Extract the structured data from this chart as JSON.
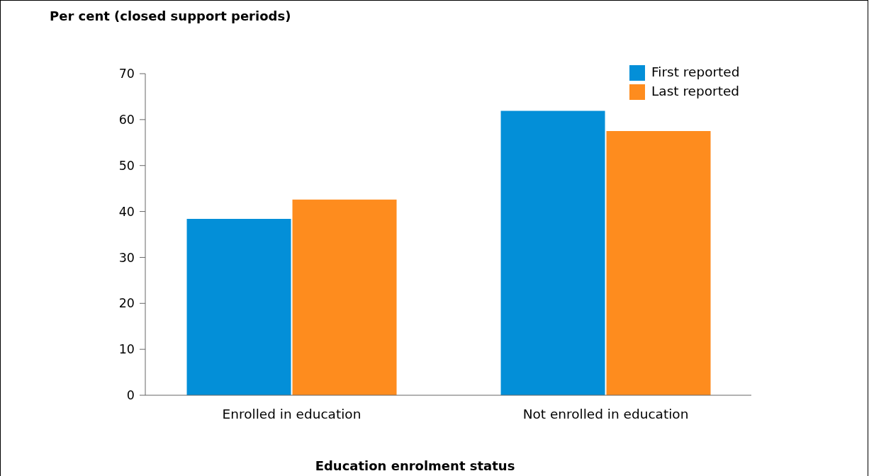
{
  "chart_data": {
    "type": "bar",
    "ylabel": "Per cent (closed support periods)",
    "xlabel": "Education enrolment status",
    "categories": [
      "Enrolled in education",
      "Not enrolled in education"
    ],
    "series": [
      {
        "name": "First reported",
        "color": "#038fd8",
        "values": [
          38.4,
          61.9
        ]
      },
      {
        "name": "Last reported",
        "color": "#fe8c1e",
        "values": [
          42.6,
          57.5
        ]
      }
    ],
    "ylim": [
      0,
      70
    ],
    "yticks": [
      0,
      10,
      20,
      30,
      40,
      50,
      60,
      70
    ],
    "legend": "top right"
  }
}
